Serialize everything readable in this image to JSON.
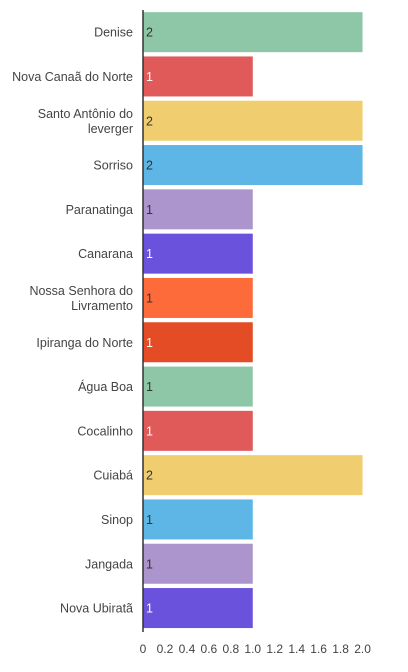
{
  "chart_data": {
    "type": "bar",
    "orientation": "horizontal",
    "categories": [
      [
        "Denise"
      ],
      [
        "Nova Canaã do Norte"
      ],
      [
        "Santo Antônio do",
        "leverger"
      ],
      [
        "Sorriso"
      ],
      [
        "Paranatinga"
      ],
      [
        "Canarana"
      ],
      [
        "Nossa Senhora do",
        "Livramento"
      ],
      [
        "Ipiranga do Norte"
      ],
      [
        "Água Boa"
      ],
      [
        "Cocalinho"
      ],
      [
        "Cuiabá"
      ],
      [
        "Sinop"
      ],
      [
        "Jangada"
      ],
      [
        "Nova Ubiratã"
      ]
    ],
    "values": [
      2,
      1,
      2,
      2,
      1,
      1,
      1,
      1,
      1,
      1,
      2,
      1,
      1,
      1
    ],
    "data_labels": [
      "2",
      "1",
      "2",
      "2",
      "1",
      "1",
      "1",
      "1",
      "1",
      "1",
      "2",
      "1",
      "1",
      "1"
    ],
    "colors": [
      "#8ec7a8",
      "#e05a5a",
      "#f0cd6e",
      "#5db6e6",
      "#ab95cc",
      "#6b52dc",
      "#fe6b3a",
      "#e34c24",
      "#8ec7a8",
      "#e05a5a",
      "#f0cd6e",
      "#5db6e6",
      "#ab95cc",
      "#6b52dc"
    ],
    "label_colors": [
      "#333333",
      "#ffffff",
      "#333333",
      "#333333",
      "#333333",
      "#ffffff",
      "#333333",
      "#ffffff",
      "#333333",
      "#ffffff",
      "#333333",
      "#333333",
      "#333333",
      "#ffffff"
    ],
    "x_ticks": [
      "0",
      "0.2",
      "0.4",
      "0.6",
      "0.8",
      "1.0",
      "1.2",
      "1.4",
      "1.6",
      "1.8",
      "2.0"
    ],
    "x_tick_values": [
      0,
      0.2,
      0.4,
      0.6,
      0.8,
      1.0,
      1.2,
      1.4,
      1.6,
      1.8,
      2.0
    ],
    "xlim": [
      0,
      2.25
    ],
    "title": "",
    "xlabel": "",
    "ylabel": "",
    "grid": false,
    "legend": "none",
    "axis_color": "#333333"
  }
}
